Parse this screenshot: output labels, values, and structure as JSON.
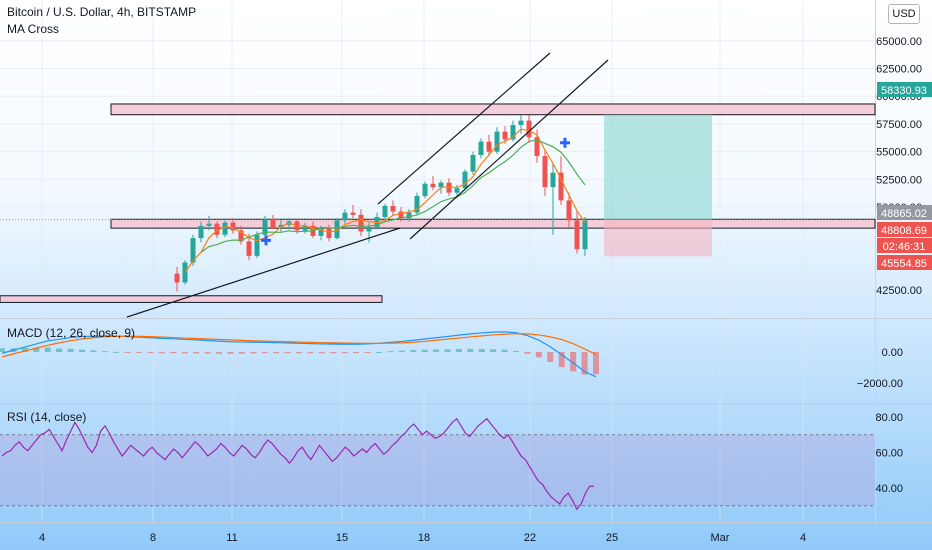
{
  "header": {
    "symbol_title": "Bitcoin / U.S. Dollar, 4h, BITSTAMP",
    "indicator": "MA Cross",
    "currency_button": "USD"
  },
  "price_axis": {
    "ticks": [
      "65000.00",
      "62500.00",
      "60000.00",
      "57500.00",
      "55000.00",
      "52500.00",
      "50000.00",
      "42500.00"
    ],
    "badges": [
      {
        "label": "58330.93",
        "color": "#26a69a"
      },
      {
        "label": "48865.02",
        "color": "#9598a1"
      },
      {
        "label": "48808.69",
        "color": "#ef5350"
      },
      {
        "label": "02:46:31",
        "color": "#ef5350"
      },
      {
        "label": "45554.85",
        "color": "#ef5350"
      }
    ]
  },
  "macd": {
    "title": "MACD (12, 26, close, 9)",
    "ticks": [
      "0.00",
      "−2000.00"
    ]
  },
  "rsi": {
    "title": "RSI (14, close)",
    "ticks": [
      "80.00",
      "60.00",
      "40.00"
    ]
  },
  "time_axis": {
    "labels": [
      "4",
      "8",
      "11",
      "15",
      "18",
      "22",
      "25",
      "Mar",
      "4"
    ]
  },
  "colors": {
    "up": "#26a69a",
    "down": "#ef5350",
    "ma_fast": "#ff7f0e",
    "ma_slow": "#4caf50",
    "macd_line": "#2196f3",
    "signal_line": "#ff6d00",
    "rsi_line": "#9c27b0",
    "bg_top": "#ffffff",
    "bg_bottom": "#90caf9"
  },
  "chart_data": [
    {
      "type": "candlestick",
      "title": "Bitcoin / U.S. Dollar, 4h, BITSTAMP",
      "ylim": [
        41000,
        65500
      ],
      "x_labels": [
        "4",
        "8",
        "11",
        "15",
        "18",
        "22",
        "25",
        "Mar",
        "4"
      ],
      "candles_ohlc": [
        [
          44000,
          44600,
          42400,
          43200
        ],
        [
          43200,
          45200,
          43000,
          45000
        ],
        [
          45000,
          47500,
          44700,
          47200
        ],
        [
          47200,
          48700,
          46800,
          48300
        ],
        [
          48300,
          49200,
          47900,
          48500
        ],
        [
          48500,
          48700,
          47200,
          47500
        ],
        [
          47500,
          48800,
          47300,
          48600
        ],
        [
          48600,
          49000,
          47600,
          47900
        ],
        [
          47900,
          48300,
          46600,
          46900
        ],
        [
          46900,
          47600,
          45200,
          45600
        ],
        [
          45600,
          47800,
          45400,
          47500
        ],
        [
          47500,
          49200,
          47300,
          48900
        ],
        [
          48900,
          49300,
          48000,
          48200
        ],
        [
          48200,
          48800,
          47700,
          48400
        ],
        [
          48400,
          49000,
          48000,
          48700
        ],
        [
          48700,
          48900,
          47600,
          47900
        ],
        [
          47900,
          48600,
          47600,
          48300
        ],
        [
          48300,
          48700,
          47200,
          47400
        ],
        [
          47400,
          48300,
          47000,
          48100
        ],
        [
          48100,
          48400,
          46900,
          47200
        ],
        [
          47200,
          49000,
          47100,
          48800
        ],
        [
          48800,
          49800,
          48500,
          49500
        ],
        [
          49500,
          50200,
          49000,
          49300
        ],
        [
          49300,
          49800,
          47400,
          47800
        ],
        [
          47800,
          48600,
          46800,
          48200
        ],
        [
          48200,
          49500,
          48000,
          49100
        ],
        [
          49100,
          50300,
          48900,
          50100
        ],
        [
          50100,
          50600,
          49200,
          49600
        ],
        [
          49600,
          50000,
          48700,
          49000
        ],
        [
          49000,
          49800,
          48700,
          49500
        ],
        [
          49500,
          51300,
          49300,
          51000
        ],
        [
          51000,
          52300,
          50800,
          52100
        ],
        [
          52100,
          52800,
          51500,
          51800
        ],
        [
          51800,
          52400,
          51200,
          52200
        ],
        [
          52200,
          52600,
          51000,
          51300
        ],
        [
          51300,
          52000,
          50800,
          51700
        ],
        [
          51700,
          53400,
          51500,
          53200
        ],
        [
          53200,
          55000,
          52900,
          54700
        ],
        [
          54700,
          56200,
          54400,
          55900
        ],
        [
          55900,
          56500,
          54600,
          55000
        ],
        [
          55000,
          57200,
          54800,
          56800
        ],
        [
          56800,
          57300,
          55700,
          56100
        ],
        [
          56100,
          57800,
          55900,
          57400
        ],
        [
          57400,
          58300,
          56600,
          57800
        ],
        [
          57800,
          58300,
          55800,
          56300
        ],
        [
          56300,
          57000,
          54000,
          54600
        ],
        [
          54600,
          55200,
          51000,
          51800
        ],
        [
          51800,
          54000,
          47500,
          53100
        ],
        [
          53100,
          54600,
          50200,
          50600
        ],
        [
          50600,
          51300,
          48200,
          48800
        ],
        [
          48800,
          49700,
          45800,
          46200
        ],
        [
          46200,
          49100,
          45600,
          48800
        ]
      ],
      "ma_cross_markers": [
        {
          "x_label": "11",
          "price": 47000
        },
        {
          "x_label": "22",
          "price": 55800
        }
      ],
      "levels": [
        {
          "price_min": 58330,
          "price_max": 59300
        },
        {
          "price_min": 48100,
          "price_max": 48900
        },
        {
          "price_min": 41400,
          "price_max": 42000
        }
      ],
      "position": {
        "entry": 48865.02,
        "target": 58330.93,
        "stop": 45554.85
      }
    },
    {
      "type": "line",
      "title": "MACD (12, 26, close, 9)",
      "ylim": [
        -2200,
        1800
      ],
      "series": [
        {
          "values": [
            -80,
            120,
            320,
            520,
            720,
            820,
            930,
            990,
            1020,
            1030,
            1020,
            990,
            960,
            920,
            880,
            850,
            810,
            780,
            740,
            700,
            660,
            640,
            630,
            620,
            600,
            580,
            560,
            540,
            520,
            510,
            500,
            500,
            520,
            560,
            620,
            680,
            760,
            840,
            920,
            1000,
            1090,
            1170,
            1230,
            1280,
            1300,
            1240,
            1060,
            760,
            340,
            -180,
            -700,
            -1260,
            -1600
          ]
        },
        {
          "values": [
            -320,
            -120,
            60,
            250,
            430,
            590,
            730,
            840,
            920,
            980,
            1010,
            1020,
            1010,
            990,
            960,
            930,
            900,
            870,
            840,
            810,
            780,
            750,
            720,
            700,
            680,
            660,
            640,
            620,
            600,
            590,
            580,
            570,
            560,
            560,
            570,
            590,
            630,
            690,
            760,
            830,
            900,
            970,
            1040,
            1100,
            1150,
            1180,
            1170,
            1100,
            980,
            800,
            540,
            200,
            -160
          ]
        }
      ]
    },
    {
      "type": "line",
      "title": "RSI (14, close)",
      "ylim": [
        25,
        85
      ],
      "series": [
        {
          "values": [
            58,
            60,
            61,
            64,
            66,
            63,
            61,
            64,
            67,
            70,
            71,
            73,
            69,
            65,
            61,
            67,
            72,
            77,
            73,
            68,
            63,
            60,
            64,
            72,
            75,
            71,
            66,
            62,
            58,
            61,
            64,
            62,
            60,
            58,
            61,
            63,
            60,
            58,
            56,
            59,
            62,
            60,
            57,
            60,
            63,
            66,
            64,
            61,
            58,
            60,
            62,
            65,
            63,
            60,
            58,
            61,
            64,
            62,
            59,
            57,
            60,
            64,
            67,
            65,
            62,
            59,
            57,
            54,
            57,
            61,
            63,
            59,
            56,
            60,
            64,
            61,
            58,
            55,
            57,
            60,
            63,
            61,
            58,
            60,
            62,
            60,
            63,
            65,
            62,
            59,
            61,
            64,
            66,
            69,
            71,
            74,
            76,
            73,
            70,
            72,
            70,
            68,
            69,
            71,
            74,
            77,
            79,
            75,
            71,
            69,
            72,
            75,
            77,
            79,
            76,
            73,
            70,
            68,
            70,
            66,
            62,
            58,
            56,
            52,
            48,
            44,
            42,
            38,
            35,
            33,
            31,
            35,
            37,
            33,
            28,
            31,
            37,
            41,
            41
          ]
        }
      ]
    }
  ]
}
